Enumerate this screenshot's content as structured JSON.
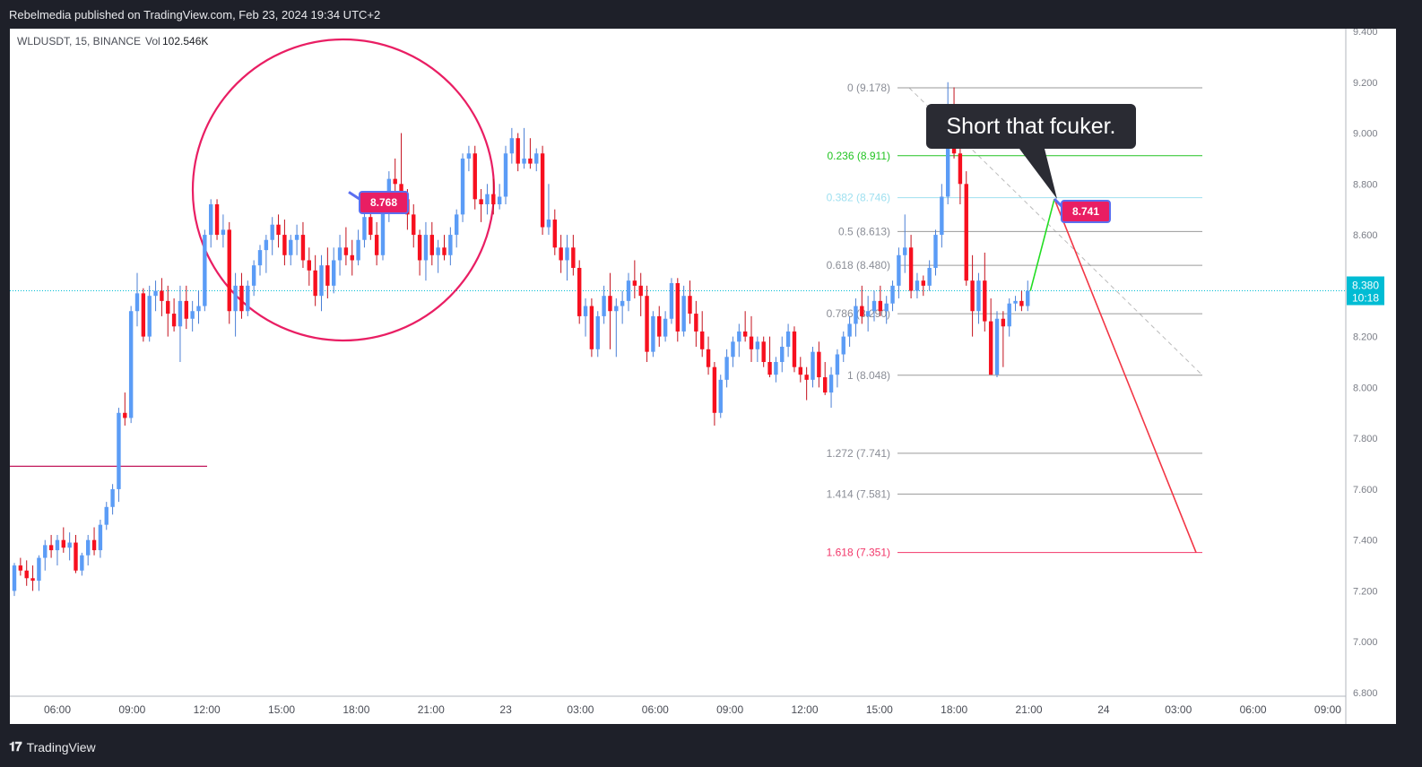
{
  "header": {
    "publisher": "Rebelmedia published on TradingView.com, Feb 23, 2024 19:34 UTC+2"
  },
  "footer": {
    "brand": "TradingView",
    "logo_icon": "tradingview-logo-icon"
  },
  "colors": {
    "up": "#5b9cf6",
    "down": "#f7101f",
    "axis_badge": "#00bcd4",
    "fib_green": "#22c422",
    "fib_cyan": "#9fe0f0",
    "fib_red": "#f23669",
    "fib_gray": "#999999",
    "callout_bg": "#2a2b33",
    "label_bg": "#e91e63",
    "circle": "#e91e63"
  },
  "chart_data": {
    "type": "candlestick",
    "symbol_info": "WLDUSDT, 15, BINANCE",
    "volume_label": "Vol",
    "volume_value": "102.546K",
    "y_range": [
      6.8,
      9.4
    ],
    "y_ticks": [
      "9.400",
      "9.200",
      "9.000",
      "8.800",
      "8.600",
      "8.400",
      "8.200",
      "8.000",
      "7.800",
      "7.600",
      "7.400",
      "7.200",
      "7.000",
      "6.800"
    ],
    "x_ticks": [
      "06:00",
      "09:00",
      "12:00",
      "15:00",
      "18:00",
      "21:00",
      "23",
      "03:00",
      "06:00",
      "09:00",
      "12:00",
      "15:00",
      "18:00",
      "21:00",
      "24",
      "03:00",
      "06:00",
      "09:00"
    ],
    "last_price": {
      "price": "8.380",
      "countdown": "10:18",
      "value": 8.38
    },
    "horizontal_line": {
      "value": 7.69
    },
    "candles": [
      [
        7.2,
        7.31,
        7.18,
        7.3
      ],
      [
        7.3,
        7.33,
        7.26,
        7.28
      ],
      [
        7.28,
        7.32,
        7.22,
        7.25
      ],
      [
        7.25,
        7.3,
        7.2,
        7.24
      ],
      [
        7.24,
        7.34,
        7.2,
        7.33
      ],
      [
        7.33,
        7.4,
        7.28,
        7.38
      ],
      [
        7.38,
        7.42,
        7.33,
        7.36
      ],
      [
        7.36,
        7.42,
        7.3,
        7.4
      ],
      [
        7.4,
        7.45,
        7.35,
        7.37
      ],
      [
        7.37,
        7.43,
        7.32,
        7.39
      ],
      [
        7.39,
        7.42,
        7.27,
        7.28
      ],
      [
        7.28,
        7.35,
        7.26,
        7.34
      ],
      [
        7.34,
        7.42,
        7.3,
        7.4
      ],
      [
        7.4,
        7.45,
        7.34,
        7.36
      ],
      [
        7.36,
        7.48,
        7.33,
        7.46
      ],
      [
        7.46,
        7.55,
        7.44,
        7.53
      ],
      [
        7.53,
        7.62,
        7.5,
        7.6
      ],
      [
        7.6,
        7.92,
        7.55,
        7.9
      ],
      [
        7.9,
        7.98,
        7.85,
        7.88
      ],
      [
        7.88,
        8.32,
        7.86,
        8.3
      ],
      [
        8.3,
        8.45,
        8.24,
        8.37
      ],
      [
        8.37,
        8.39,
        8.18,
        8.2
      ],
      [
        8.2,
        8.4,
        8.18,
        8.36
      ],
      [
        8.36,
        8.42,
        8.3,
        8.38
      ],
      [
        8.38,
        8.43,
        8.28,
        8.34
      ],
      [
        8.34,
        8.4,
        8.2,
        8.29
      ],
      [
        8.29,
        8.35,
        8.22,
        8.24
      ],
      [
        8.24,
        8.4,
        8.1,
        8.34
      ],
      [
        8.34,
        8.4,
        8.23,
        8.27
      ],
      [
        8.27,
        8.34,
        8.22,
        8.3
      ],
      [
        8.3,
        8.38,
        8.25,
        8.32
      ],
      [
        8.32,
        8.62,
        8.3,
        8.6
      ],
      [
        8.6,
        8.74,
        8.55,
        8.72
      ],
      [
        8.72,
        8.74,
        8.58,
        8.6
      ],
      [
        8.6,
        8.68,
        8.55,
        8.62
      ],
      [
        8.62,
        8.65,
        8.25,
        8.3
      ],
      [
        8.3,
        8.45,
        8.2,
        8.4
      ],
      [
        8.4,
        8.45,
        8.27,
        8.3
      ],
      [
        8.3,
        8.42,
        8.28,
        8.4
      ],
      [
        8.4,
        8.5,
        8.36,
        8.48
      ],
      [
        8.48,
        8.56,
        8.44,
        8.54
      ],
      [
        8.54,
        8.6,
        8.45,
        8.58
      ],
      [
        8.58,
        8.67,
        8.52,
        8.64
      ],
      [
        8.64,
        8.68,
        8.55,
        8.6
      ],
      [
        8.6,
        8.66,
        8.48,
        8.52
      ],
      [
        8.52,
        8.6,
        8.48,
        8.58
      ],
      [
        8.58,
        8.64,
        8.52,
        8.6
      ],
      [
        8.6,
        8.65,
        8.47,
        8.5
      ],
      [
        8.5,
        8.55,
        8.4,
        8.46
      ],
      [
        8.46,
        8.52,
        8.32,
        8.36
      ],
      [
        8.36,
        8.52,
        8.3,
        8.48
      ],
      [
        8.48,
        8.55,
        8.35,
        8.4
      ],
      [
        8.4,
        8.55,
        8.37,
        8.5
      ],
      [
        8.5,
        8.6,
        8.44,
        8.55
      ],
      [
        8.55,
        8.63,
        8.48,
        8.52
      ],
      [
        8.52,
        8.58,
        8.44,
        8.5
      ],
      [
        8.5,
        8.62,
        8.48,
        8.58
      ],
      [
        8.58,
        8.7,
        8.55,
        8.67
      ],
      [
        8.67,
        8.72,
        8.58,
        8.6
      ],
      [
        8.6,
        8.65,
        8.48,
        8.52
      ],
      [
        8.52,
        8.72,
        8.5,
        8.7
      ],
      [
        8.7,
        8.85,
        8.65,
        8.82
      ],
      [
        8.82,
        8.9,
        8.76,
        8.8
      ],
      [
        8.8,
        9.0,
        8.75,
        8.74
      ],
      [
        8.74,
        8.78,
        8.62,
        8.68
      ],
      [
        8.68,
        8.72,
        8.55,
        8.6
      ],
      [
        8.6,
        8.62,
        8.44,
        8.5
      ],
      [
        8.5,
        8.65,
        8.42,
        8.6
      ],
      [
        8.6,
        8.65,
        8.48,
        8.52
      ],
      [
        8.52,
        8.58,
        8.45,
        8.55
      ],
      [
        8.55,
        8.6,
        8.5,
        8.52
      ],
      [
        8.52,
        8.63,
        8.48,
        8.6
      ],
      [
        8.6,
        8.7,
        8.55,
        8.68
      ],
      [
        8.68,
        8.92,
        8.65,
        8.9
      ],
      [
        8.9,
        8.95,
        8.85,
        8.92
      ],
      [
        8.92,
        8.95,
        8.7,
        8.74
      ],
      [
        8.74,
        8.78,
        8.65,
        8.72
      ],
      [
        8.72,
        8.8,
        8.68,
        8.76
      ],
      [
        8.76,
        8.82,
        8.68,
        8.72
      ],
      [
        8.72,
        8.8,
        8.7,
        8.75
      ],
      [
        8.75,
        8.95,
        8.72,
        8.92
      ],
      [
        8.92,
        9.02,
        8.88,
        8.98
      ],
      [
        8.98,
        9.0,
        8.85,
        8.88
      ],
      [
        8.88,
        9.02,
        8.86,
        8.9
      ],
      [
        8.9,
        8.98,
        8.86,
        8.88
      ],
      [
        8.88,
        8.94,
        8.85,
        8.92
      ],
      [
        8.92,
        8.95,
        8.6,
        8.63
      ],
      [
        8.63,
        8.8,
        8.6,
        8.66
      ],
      [
        8.66,
        8.7,
        8.52,
        8.55
      ],
      [
        8.55,
        8.6,
        8.45,
        8.5
      ],
      [
        8.5,
        8.6,
        8.42,
        8.55
      ],
      [
        8.55,
        8.6,
        8.44,
        8.47
      ],
      [
        8.47,
        8.5,
        8.25,
        8.28
      ],
      [
        8.28,
        8.35,
        8.2,
        8.32
      ],
      [
        8.32,
        8.35,
        8.12,
        8.15
      ],
      [
        8.15,
        8.3,
        8.12,
        8.28
      ],
      [
        8.28,
        8.4,
        8.25,
        8.36
      ],
      [
        8.36,
        8.45,
        8.15,
        8.3
      ],
      [
        8.3,
        8.35,
        8.12,
        8.32
      ],
      [
        8.32,
        8.38,
        8.25,
        8.34
      ],
      [
        8.34,
        8.45,
        8.3,
        8.42
      ],
      [
        8.42,
        8.5,
        8.35,
        8.4
      ],
      [
        8.4,
        8.45,
        8.28,
        8.36
      ],
      [
        8.36,
        8.4,
        8.1,
        8.14
      ],
      [
        8.14,
        8.3,
        8.12,
        8.28
      ],
      [
        8.28,
        8.32,
        8.16,
        8.2
      ],
      [
        8.2,
        8.3,
        8.18,
        8.27
      ],
      [
        8.27,
        8.43,
        8.25,
        8.41
      ],
      [
        8.41,
        8.43,
        8.18,
        8.22
      ],
      [
        8.22,
        8.4,
        8.2,
        8.36
      ],
      [
        8.36,
        8.42,
        8.25,
        8.29
      ],
      [
        8.29,
        8.34,
        8.16,
        8.22
      ],
      [
        8.22,
        8.3,
        8.12,
        8.15
      ],
      [
        8.15,
        8.2,
        8.05,
        8.08
      ],
      [
        8.08,
        8.1,
        7.85,
        7.9
      ],
      [
        7.9,
        8.05,
        7.88,
        8.03
      ],
      [
        8.03,
        8.15,
        8.0,
        8.12
      ],
      [
        8.12,
        8.2,
        8.08,
        8.18
      ],
      [
        8.18,
        8.25,
        8.12,
        8.22
      ],
      [
        8.22,
        8.3,
        8.18,
        8.2
      ],
      [
        8.2,
        8.28,
        8.1,
        8.15
      ],
      [
        8.15,
        8.2,
        8.1,
        8.18
      ],
      [
        8.18,
        8.2,
        8.08,
        8.1
      ],
      [
        8.1,
        8.2,
        8.04,
        8.05
      ],
      [
        8.05,
        8.12,
        8.02,
        8.1
      ],
      [
        8.1,
        8.2,
        8.06,
        8.16
      ],
      [
        8.16,
        8.25,
        8.12,
        8.22
      ],
      [
        8.22,
        8.24,
        8.06,
        8.08
      ],
      [
        8.08,
        8.12,
        8.02,
        8.05
      ],
      [
        8.05,
        8.08,
        7.95,
        8.03
      ],
      [
        8.03,
        8.16,
        8.0,
        8.14
      ],
      [
        8.14,
        8.18,
        8.0,
        8.04
      ],
      [
        8.04,
        8.1,
        7.97,
        7.98
      ],
      [
        7.98,
        8.08,
        7.92,
        8.05
      ],
      [
        8.05,
        8.15,
        8.0,
        8.13
      ],
      [
        8.13,
        8.22,
        8.1,
        8.2
      ],
      [
        8.2,
        8.28,
        8.16,
        8.25
      ],
      [
        8.25,
        8.35,
        8.2,
        8.32
      ],
      [
        8.32,
        8.4,
        8.25,
        8.28
      ],
      [
        8.28,
        8.36,
        8.22,
        8.3
      ],
      [
        8.3,
        8.38,
        8.26,
        8.34
      ],
      [
        8.34,
        8.4,
        8.28,
        8.3
      ],
      [
        8.3,
        8.36,
        8.25,
        8.33
      ],
      [
        8.33,
        8.42,
        8.3,
        8.4
      ],
      [
        8.4,
        8.55,
        8.35,
        8.52
      ],
      [
        8.52,
        8.68,
        8.45,
        8.55
      ],
      [
        8.55,
        8.6,
        8.35,
        8.38
      ],
      [
        8.38,
        8.45,
        8.35,
        8.42
      ],
      [
        8.42,
        8.44,
        8.36,
        8.4
      ],
      [
        8.4,
        8.5,
        8.38,
        8.47
      ],
      [
        8.47,
        8.62,
        8.44,
        8.6
      ],
      [
        8.6,
        8.8,
        8.55,
        8.75
      ],
      [
        8.75,
        9.2,
        8.72,
        9.1
      ],
      [
        9.1,
        9.18,
        8.9,
        8.92
      ],
      [
        8.92,
        8.95,
        8.72,
        8.8
      ],
      [
        8.8,
        8.85,
        8.4,
        8.42
      ],
      [
        8.42,
        8.52,
        8.2,
        8.3
      ],
      [
        8.3,
        8.45,
        8.25,
        8.42
      ],
      [
        8.42,
        8.53,
        8.22,
        8.26
      ],
      [
        8.26,
        8.35,
        8.05,
        8.05
      ],
      [
        8.05,
        8.3,
        8.04,
        8.27
      ],
      [
        8.27,
        8.3,
        8.08,
        8.24
      ],
      [
        8.24,
        8.35,
        8.2,
        8.33
      ],
      [
        8.33,
        8.36,
        8.3,
        8.34
      ],
      [
        8.34,
        8.38,
        8.3,
        8.32
      ],
      [
        8.32,
        8.42,
        8.3,
        8.38
      ]
    ],
    "fib_levels": [
      {
        "label": "0 (9.178)",
        "value": 9.178,
        "color_key": "fib_gray"
      },
      {
        "label": "0.236 (8.911)",
        "value": 8.911,
        "color_key": "fib_green"
      },
      {
        "label": "0.382 (8.746)",
        "value": 8.746,
        "color_key": "fib_cyan"
      },
      {
        "label": "0.5 (8.613)",
        "value": 8.613,
        "color_key": "fib_gray"
      },
      {
        "label": "0.618 (8.480)",
        "value": 8.48,
        "color_key": "fib_gray"
      },
      {
        "label": "0.786 (8.290)",
        "value": 8.29,
        "color_key": "fib_gray"
      },
      {
        "label": "1 (8.048)",
        "value": 8.048,
        "color_key": "fib_gray"
      },
      {
        "label": "1.272 (7.741)",
        "value": 7.741,
        "color_key": "fib_gray"
      },
      {
        "label": "1.414 (7.581)",
        "value": 7.581,
        "color_key": "fib_gray"
      },
      {
        "label": "1.618 (7.351)",
        "value": 7.351,
        "color_key": "fib_red"
      }
    ],
    "price_labels": [
      {
        "text": "8.768",
        "value": 8.768
      },
      {
        "text": "8.741",
        "value": 8.741
      }
    ],
    "callout": {
      "text": "Short that fcuker."
    },
    "projection": {
      "start_value": 8.38,
      "peak_value": 8.741,
      "end_value": 7.351
    }
  }
}
